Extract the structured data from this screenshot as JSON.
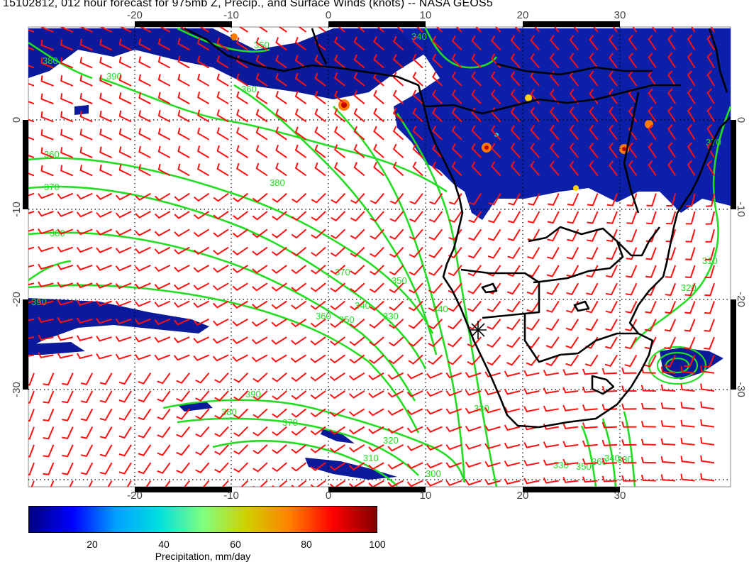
{
  "title": "15102812, 012 hour forecast for 975mb Z, Precip., and Surface Winds (knots) -- NASA GEOS5",
  "map": {
    "lon_ticks": [
      "-20",
      "-10",
      "0",
      "10",
      "20",
      "30"
    ],
    "lat_ticks": [
      "0",
      "-10",
      "-20",
      "-30"
    ],
    "contour_labels": [
      "360",
      "370",
      "380",
      "390",
      "380",
      "370",
      "360",
      "350",
      "340",
      "330",
      "350",
      "340",
      "330",
      "320",
      "310",
      "300",
      "390",
      "380",
      "370",
      "360",
      "350",
      "340",
      "330",
      "350",
      "360",
      "340",
      "330",
      "320",
      "310",
      "370",
      "380",
      "390"
    ],
    "colors": {
      "precip_low": "#0a1a9a",
      "contour": "#22dd22",
      "wind_barb": "#ff1010",
      "coastline": "#000000",
      "grid": "#000000"
    },
    "marker": "asterisk",
    "layers": [
      "975mb geopotential height contours",
      "precipitation shading",
      "surface wind barbs",
      "coastlines and borders"
    ]
  },
  "colorbar": {
    "ticks": [
      "20",
      "40",
      "60",
      "80",
      "100"
    ],
    "range": [
      0,
      100
    ],
    "label": "Precipitation, mm/day",
    "colors": [
      "#000080",
      "#0000ff",
      "#00a0ff",
      "#00e0e0",
      "#80ff80",
      "#d0d000",
      "#ff8000",
      "#ff0000",
      "#800000"
    ]
  }
}
